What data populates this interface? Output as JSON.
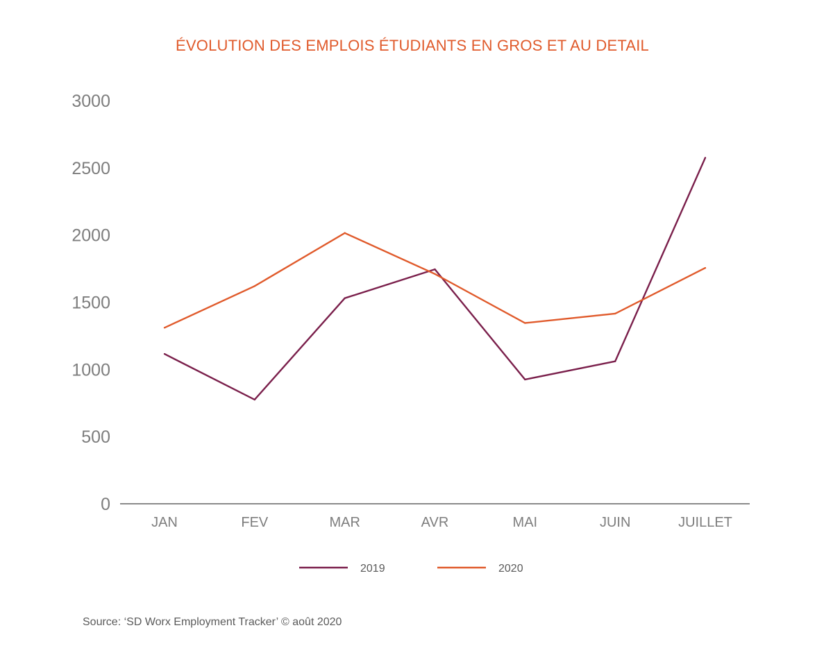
{
  "chart_data": {
    "type": "line",
    "title": "ÉVOLUTION DES EMPLOIS ÉTUDIANTS EN GROS ET AU DETAIL",
    "categories": [
      "JAN",
      "FEV",
      "MAR",
      "AVR",
      "MAI",
      "JUIN",
      "JUILLET"
    ],
    "yticks": [
      "0",
      "500",
      "1000",
      "1500",
      "2000",
      "2500",
      "3000"
    ],
    "ylim": [
      0,
      3000
    ],
    "xlabel": "",
    "ylabel": "",
    "grid": false,
    "legend_position": "bottom-center",
    "series": [
      {
        "name": "2019",
        "color": "#7a1f4b",
        "values": [
          1115,
          775,
          1530,
          1745,
          925,
          1060,
          2575
        ]
      },
      {
        "name": "2020",
        "color": "#e05a2b",
        "values": [
          1310,
          1620,
          2015,
          1710,
          1345,
          1415,
          1755
        ]
      }
    ]
  },
  "source": "Source: ‘SD Worx Employment Tracker’ © août 2020"
}
